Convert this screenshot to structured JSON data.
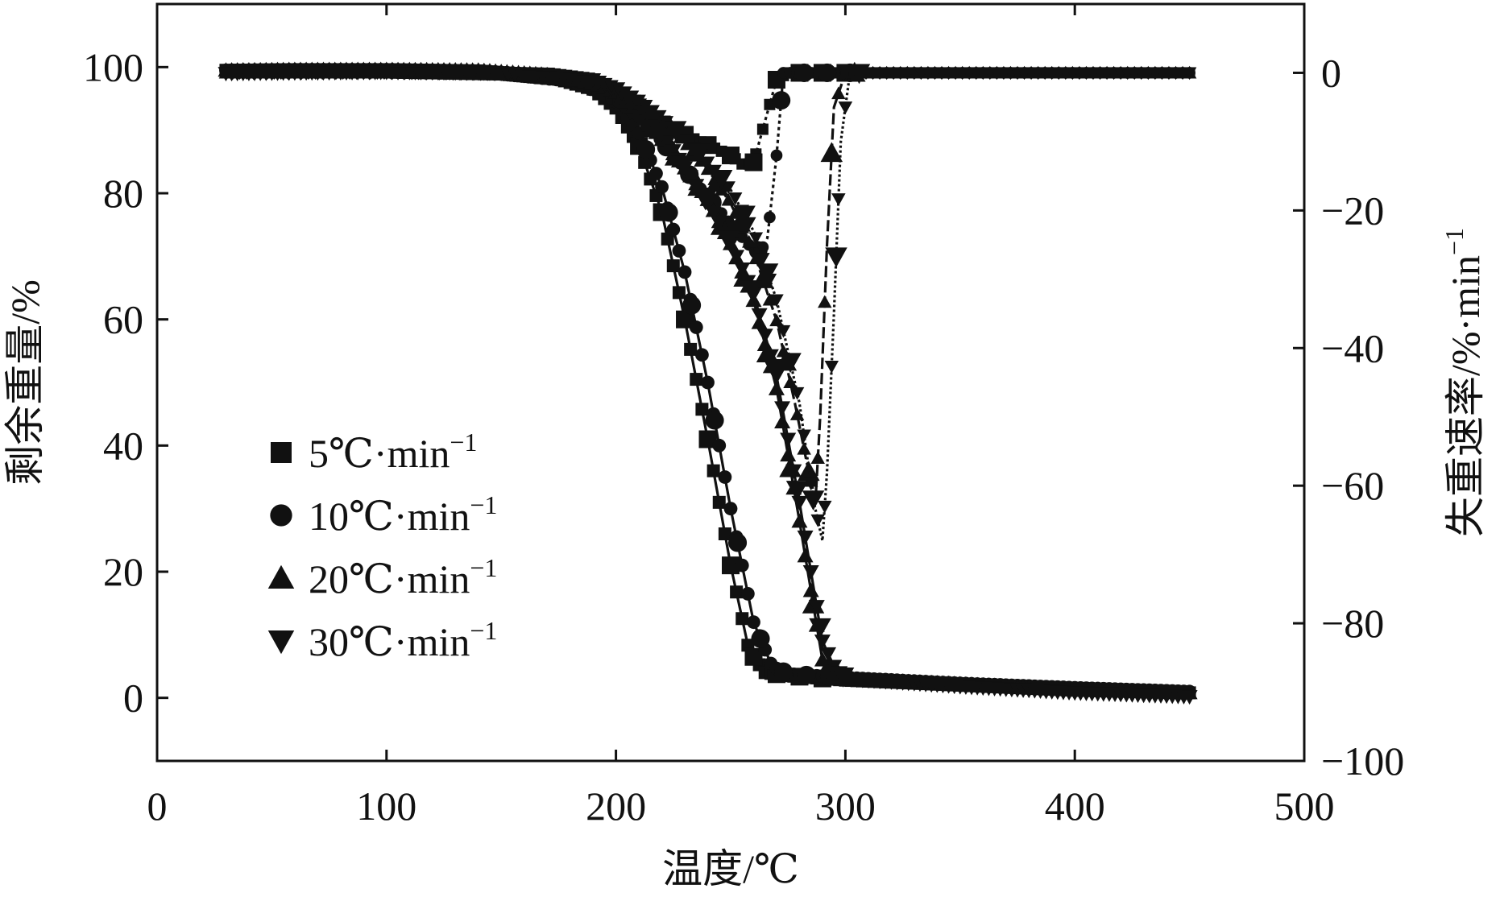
{
  "chart_data": {
    "type": "line",
    "xlabel": "温度/℃",
    "ylabel": "剩余重量/%",
    "y2label": "失重速率/%·min",
    "y2label_sup": "−1",
    "xlim": [
      0,
      500
    ],
    "ylim": [
      -10,
      110
    ],
    "y2lim": [
      -100,
      10
    ],
    "xticks": [
      0,
      100,
      200,
      300,
      400,
      500
    ],
    "yticks": [
      0,
      20,
      40,
      60,
      80,
      100
    ],
    "y2ticks": [
      0,
      -20,
      -40,
      -60,
      -80,
      -100
    ],
    "xtick_labels": [
      "0",
      "100",
      "200",
      "300",
      "400",
      "500"
    ],
    "ytick_labels": [
      "0",
      "20",
      "40",
      "60",
      "80",
      "100"
    ],
    "y2tick_labels": [
      "0",
      "−20",
      "−40",
      "−60",
      "−80",
      "−100"
    ],
    "grid": false,
    "legend_position": "lower-left",
    "color": "#111111",
    "series": [
      {
        "name": "5℃·min",
        "name_sup": "−1",
        "marker": "square",
        "x": [
          30,
          60,
          100,
          140,
          170,
          190,
          200,
          210,
          220,
          230,
          240,
          250,
          258,
          265,
          275,
          300,
          350,
          400,
          450
        ],
        "y": [
          99.5,
          99.6,
          99.6,
          99.4,
          98.6,
          96.5,
          93.5,
          87.5,
          77,
          60,
          41,
          21,
          7.5,
          4,
          3.5,
          2.8,
          2,
          1.2,
          0.8
        ],
        "rate_x": [
          30,
          100,
          150,
          180,
          200,
          210,
          220,
          230,
          240,
          250,
          256,
          260,
          265,
          270,
          275,
          300,
          450
        ],
        "rate_y": [
          0,
          0,
          -0.3,
          -1.2,
          -3.5,
          -5.5,
          -7.5,
          -9,
          -10.5,
          -12,
          -13.5,
          -13,
          -7,
          -1,
          0,
          0,
          0
        ]
      },
      {
        "name": "10℃·min",
        "name_sup": "−1",
        "marker": "circle",
        "x": [
          30,
          60,
          100,
          140,
          170,
          190,
          200,
          210,
          220,
          230,
          240,
          250,
          260,
          268,
          275,
          300,
          350,
          400,
          450
        ],
        "y": [
          99.5,
          99.6,
          99.6,
          99.4,
          98.7,
          97,
          94.5,
          89.5,
          81,
          67.5,
          50,
          30,
          12,
          5,
          3.8,
          3.2,
          2.3,
          1.6,
          1
        ],
        "rate_x": [
          30,
          100,
          150,
          180,
          200,
          210,
          220,
          230,
          240,
          250,
          258,
          263,
          266,
          270,
          273,
          300,
          450
        ],
        "rate_y": [
          0,
          0,
          -0.3,
          -1.3,
          -4,
          -6.5,
          -10,
          -14,
          -18,
          -22,
          -25,
          -26,
          -24,
          -12,
          0,
          0,
          0
        ]
      },
      {
        "name": "20℃·min",
        "name_sup": "−1",
        "marker": "triangle-up",
        "x": [
          30,
          60,
          100,
          140,
          170,
          190,
          200,
          210,
          220,
          230,
          240,
          250,
          260,
          270,
          280,
          290,
          300,
          350,
          400,
          450
        ],
        "y": [
          99.5,
          99.6,
          99.6,
          99.5,
          98.8,
          97.5,
          96,
          93,
          88.5,
          84,
          79,
          72,
          63,
          49,
          28,
          6,
          3,
          2.2,
          1.3,
          0.8
        ],
        "rate_x": [
          30,
          100,
          150,
          180,
          200,
          210,
          220,
          230,
          240,
          250,
          260,
          270,
          278,
          284,
          287,
          289,
          292,
          295,
          300,
          450
        ],
        "rate_y": [
          0,
          0,
          -0.2,
          -1,
          -2.5,
          -4.5,
          -7,
          -10,
          -14,
          -19,
          -26,
          -36,
          -48,
          -58,
          -62,
          -50,
          -25,
          -5,
          0,
          0
        ]
      },
      {
        "name": "30℃·min",
        "name_sup": "−1",
        "marker": "triangle-down",
        "x": [
          30,
          60,
          100,
          140,
          170,
          190,
          200,
          210,
          220,
          230,
          240,
          250,
          260,
          270,
          280,
          290,
          295,
          300,
          350,
          400,
          450
        ],
        "y": [
          99,
          99.1,
          99.2,
          99.1,
          98.9,
          98,
          96.5,
          94,
          89.5,
          84,
          78.5,
          72,
          64,
          51,
          31,
          9,
          5,
          3,
          1.8,
          0.8,
          0.2
        ],
        "rate_x": [
          30,
          100,
          150,
          180,
          200,
          210,
          220,
          230,
          240,
          250,
          260,
          270,
          280,
          286,
          290,
          292,
          295,
          298,
          302,
          450
        ],
        "rate_y": [
          0,
          0,
          -0.2,
          -0.8,
          -2,
          -4,
          -6.5,
          -9.5,
          -13,
          -17,
          -23,
          -33,
          -48,
          -62,
          -68,
          -58,
          -35,
          -10,
          0,
          0
        ]
      }
    ]
  }
}
